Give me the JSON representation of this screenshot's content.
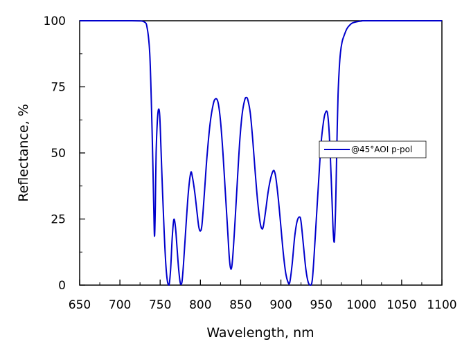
{
  "chart_data": {
    "type": "line",
    "title": "",
    "xlabel": "Wavelength, nm",
    "ylabel": "Reflectance, %",
    "xlim": [
      650,
      1100
    ],
    "ylim": [
      0,
      100
    ],
    "x_ticks": [
      "650",
      "700",
      "750",
      "800",
      "850",
      "900",
      "950",
      "1000",
      "1050",
      "1100"
    ],
    "y_ticks": [
      "0",
      "25",
      "50",
      "75",
      "100"
    ],
    "grid": false,
    "legend_position": "right",
    "series": [
      {
        "name": "@45°AOI p-pol",
        "color": "#0000cc",
        "points": [
          [
            650,
            100
          ],
          [
            715,
            100
          ],
          [
            730,
            99.6
          ],
          [
            734,
            97
          ],
          [
            737,
            88
          ],
          [
            739,
            70
          ],
          [
            741,
            45
          ],
          [
            742,
            30
          ],
          [
            743,
            18.5
          ],
          [
            744,
            30
          ],
          [
            745,
            50
          ],
          [
            746.5,
            62
          ],
          [
            748,
            66.5
          ],
          [
            749.5,
            64
          ],
          [
            751,
            52
          ],
          [
            753,
            35
          ],
          [
            755,
            20
          ],
          [
            757,
            8
          ],
          [
            759,
            1.5
          ],
          [
            761,
            0
          ],
          [
            763,
            6
          ],
          [
            765,
            18
          ],
          [
            767,
            24.8
          ],
          [
            769,
            22
          ],
          [
            771,
            14
          ],
          [
            773,
            6
          ],
          [
            775,
            0.8
          ],
          [
            777,
            1
          ],
          [
            779,
            8
          ],
          [
            782,
            22
          ],
          [
            785,
            35
          ],
          [
            788,
            42.5
          ],
          [
            790,
            41
          ],
          [
            793,
            35
          ],
          [
            796,
            27
          ],
          [
            798,
            22
          ],
          [
            800,
            20.5
          ],
          [
            802,
            23
          ],
          [
            805,
            35
          ],
          [
            808,
            48
          ],
          [
            812,
            61
          ],
          [
            816,
            68.5
          ],
          [
            819,
            70.5
          ],
          [
            822,
            69
          ],
          [
            825,
            62
          ],
          [
            828,
            50
          ],
          [
            831,
            35
          ],
          [
            834,
            20
          ],
          [
            836,
            10
          ],
          [
            838,
            6
          ],
          [
            840,
            10
          ],
          [
            843,
            24
          ],
          [
            846,
            40
          ],
          [
            849,
            55
          ],
          [
            852,
            65
          ],
          [
            855,
            70
          ],
          [
            857,
            71
          ],
          [
            859,
            70
          ],
          [
            862,
            65
          ],
          [
            865,
            55
          ],
          [
            868,
            43
          ],
          [
            871,
            32
          ],
          [
            874,
            24
          ],
          [
            876,
            21.5
          ],
          [
            878,
            22
          ],
          [
            881,
            28
          ],
          [
            884,
            35
          ],
          [
            887,
            40
          ],
          [
            890,
            43
          ],
          [
            892,
            43
          ],
          [
            894,
            40
          ],
          [
            897,
            32
          ],
          [
            900,
            22
          ],
          [
            903,
            12
          ],
          [
            906,
            4.5
          ],
          [
            909,
            1
          ],
          [
            911,
            1
          ],
          [
            914,
            8
          ],
          [
            917,
            18
          ],
          [
            920,
            24
          ],
          [
            923,
            25.8
          ],
          [
            925,
            24
          ],
          [
            928,
            15
          ],
          [
            931,
            6
          ],
          [
            934,
            1
          ],
          [
            937,
            0
          ],
          [
            939,
            2
          ],
          [
            941,
            10
          ],
          [
            944,
            25
          ],
          [
            947,
            40
          ],
          [
            950,
            54
          ],
          [
            953,
            62
          ],
          [
            955,
            65
          ],
          [
            957.5,
            65.5
          ],
          [
            959.5,
            60
          ],
          [
            961.5,
            48
          ],
          [
            963.5,
            32
          ],
          [
            965,
            20
          ],
          [
            966.5,
            16.8
          ],
          [
            968,
            30
          ],
          [
            969,
            45
          ],
          [
            970,
            60
          ],
          [
            971,
            72
          ],
          [
            972.5,
            82
          ],
          [
            974,
            88
          ],
          [
            976,
            92
          ],
          [
            978,
            94
          ],
          [
            982,
            97
          ],
          [
            986,
            98.5
          ],
          [
            990,
            99.3
          ],
          [
            1000,
            99.9
          ],
          [
            1010,
            100
          ],
          [
            1100,
            100
          ]
        ]
      }
    ]
  }
}
